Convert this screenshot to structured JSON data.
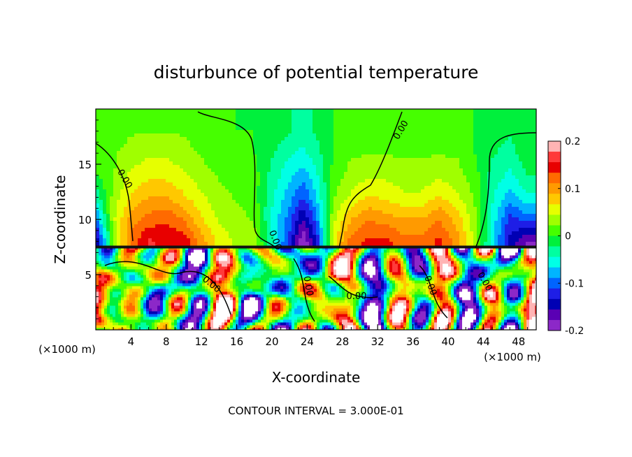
{
  "chart_data": {
    "type": "heatmap",
    "title": "disturbunce of potential temperature",
    "xlabel": "X-coordinate",
    "ylabel": "Z-coordinate",
    "x_unit_left": "(×1000 m)",
    "x_unit_right": "(×1000 m)",
    "xlim": [
      0,
      50
    ],
    "ylim": [
      0,
      20
    ],
    "x_ticks": [
      4,
      8,
      12,
      16,
      20,
      24,
      28,
      32,
      36,
      40,
      44,
      48
    ],
    "y_ticks": [
      5,
      10,
      15
    ],
    "footer": "CONTOUR INTERVAL = 3.000E-01",
    "contour_labels": [
      "0.00",
      "0.00",
      "0.00",
      "0.00",
      "0.00",
      "0.00",
      "0.00",
      "0.00"
    ],
    "colorbar": {
      "range": [
        -0.2,
        0.2
      ],
      "ticks": [
        "0.2",
        "0.1",
        "0",
        "-0.1",
        "-0.2"
      ],
      "colors": [
        "#ffb4b4",
        "#ff3a3a",
        "#e80000",
        "#ff6a00",
        "#ff9a00",
        "#ffc800",
        "#e6ff00",
        "#a0ff00",
        "#46ff00",
        "#00f03c",
        "#00ffa0",
        "#00ffe6",
        "#00b4ff",
        "#0064ff",
        "#1e1ee6",
        "#0000b4",
        "#5a00b4",
        "#8c28c8"
      ]
    },
    "upper_layer": {
      "z_range": [
        7.5,
        20
      ],
      "x": [
        0,
        2,
        4,
        6,
        8,
        10,
        12,
        14,
        16,
        18,
        20,
        22,
        23.5,
        25,
        27,
        29,
        31,
        33,
        35,
        37,
        39,
        41,
        43,
        45,
        47,
        49
      ],
      "z": [
        8.0,
        10.0,
        12.0,
        14.0,
        16.0,
        18.0
      ],
      "values": [
        [
          -0.16,
          0.02,
          0.12,
          0.16,
          0.15,
          0.15,
          0.1,
          0.06,
          0.04,
          0.03,
          -0.04,
          -0.12,
          -0.2,
          -0.14,
          0.06,
          0.12,
          0.14,
          0.14,
          0.12,
          0.12,
          0.14,
          0.1,
          0.04,
          -0.06,
          -0.14,
          -0.18
        ],
        [
          -0.1,
          0.04,
          0.1,
          0.12,
          0.13,
          0.11,
          0.07,
          0.04,
          0.03,
          0.02,
          -0.05,
          -0.1,
          -0.16,
          -0.1,
          0.04,
          0.09,
          0.11,
          0.1,
          0.09,
          0.09,
          0.11,
          0.08,
          0.03,
          -0.05,
          -0.12,
          -0.1
        ],
        [
          -0.04,
          0.03,
          0.07,
          0.09,
          0.09,
          0.07,
          0.05,
          0.03,
          0.02,
          0.01,
          -0.04,
          -0.08,
          -0.11,
          -0.07,
          0.02,
          0.05,
          0.07,
          0.06,
          0.05,
          0.05,
          0.07,
          0.05,
          0.02,
          -0.04,
          -0.08,
          -0.05
        ],
        [
          0.0,
          0.02,
          0.05,
          0.06,
          0.06,
          0.05,
          0.03,
          0.02,
          0.01,
          0.01,
          -0.03,
          -0.06,
          -0.08,
          -0.05,
          0.01,
          0.03,
          0.04,
          0.04,
          0.03,
          0.03,
          0.04,
          0.03,
          0.01,
          -0.03,
          -0.05,
          -0.02
        ],
        [
          0.01,
          0.02,
          0.03,
          0.04,
          0.04,
          0.03,
          0.02,
          0.01,
          0.01,
          0.0,
          -0.02,
          -0.04,
          -0.05,
          -0.03,
          0.0,
          0.02,
          0.02,
          0.02,
          0.02,
          0.02,
          0.02,
          0.02,
          0.0,
          -0.02,
          -0.03,
          -0.01
        ],
        [
          0.01,
          0.01,
          0.02,
          0.02,
          0.02,
          0.02,
          0.01,
          0.01,
          0.0,
          0.0,
          -0.01,
          -0.02,
          -0.03,
          -0.02,
          0.0,
          0.01,
          0.01,
          0.01,
          0.01,
          0.01,
          0.01,
          0.01,
          0.0,
          -0.01,
          -0.02,
          0.0
        ]
      ]
    },
    "lower_layer": {
      "z_range": [
        0,
        7.5
      ],
      "description_values_mix": "turbulent field spanning the full colour range"
    }
  }
}
